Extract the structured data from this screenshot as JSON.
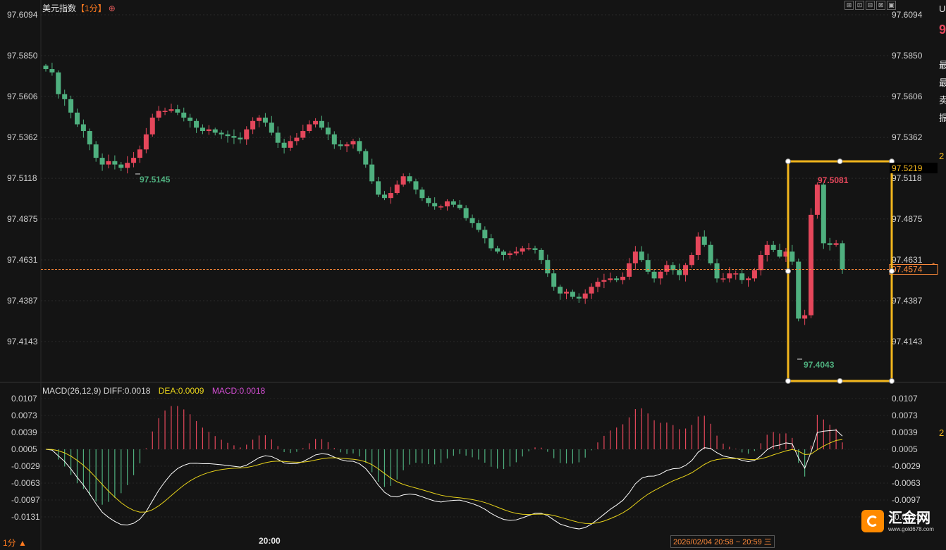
{
  "header": {
    "symbol": "美元指数",
    "timeframe": "【1分】",
    "add_icon": "⊕"
  },
  "toolbar": {
    "buttons": [
      "⊞",
      "⊡",
      "⊟",
      "⊠",
      "▣"
    ]
  },
  "price_axis": {
    "ticks": [
      "97.6094",
      "97.5850",
      "97.5606",
      "97.5362",
      "97.5118",
      "97.4875",
      "97.4631",
      "97.4387",
      "97.4143"
    ],
    "current_price": "97.4574",
    "box_top_price": "97.5219"
  },
  "annotations": {
    "low_left": "97.5145",
    "box_high": "97.5081",
    "box_low": "97.4043"
  },
  "macd": {
    "header": "MACD(26,12,9)",
    "diff": "DIFF:0.0018",
    "dea": "DEA:0.0009",
    "macd": "MACD:0.0018",
    "ticks": [
      "0.0107",
      "0.0073",
      "0.0039",
      "0.0005",
      "-0.0029",
      "-0.0063",
      "-0.0097",
      "-0.0131"
    ]
  },
  "footer": {
    "timeframe": "1分",
    "arrow": "▲",
    "time_label": "20:00",
    "range": "2026/02/04 20:58 ~ 20:59 三"
  },
  "right_panel": {
    "items": [
      "U",
      "9",
      "最",
      "最",
      "卖",
      "振",
      "2",
      "2"
    ]
  },
  "logo": {
    "name": "汇金网",
    "url": "www.gold678.com"
  },
  "colors": {
    "up": "#e5475b",
    "down": "#4fb07f",
    "box": "#f2b61d",
    "price_line": "#ff8a3a",
    "diff": "#ffffff",
    "dea": "#e8d31a"
  },
  "chart_data": {
    "type": "candlestick",
    "title": "美元指数",
    "timeframe": "1分",
    "ylim": [
      97.39,
      97.6094
    ],
    "time_label": "20:00",
    "candles_close": [
      97.577,
      97.575,
      97.562,
      97.559,
      97.551,
      97.544,
      97.54,
      97.532,
      97.524,
      97.52,
      97.522,
      97.52,
      97.518,
      97.521,
      97.524,
      97.529,
      97.538,
      97.548,
      97.552,
      97.552,
      97.553,
      97.551,
      97.548,
      97.546,
      97.542,
      97.54,
      97.541,
      97.539,
      97.538,
      97.537,
      97.536,
      97.535,
      97.541,
      97.546,
      97.548,
      97.545,
      97.539,
      97.533,
      97.53,
      97.534,
      97.536,
      97.54,
      97.544,
      97.546,
      97.542,
      97.538,
      97.532,
      97.531,
      97.532,
      97.534,
      97.528,
      97.52,
      97.51,
      97.502,
      97.5,
      97.503,
      97.508,
      97.513,
      97.51,
      97.505,
      97.5,
      97.497,
      97.495,
      97.495,
      97.498,
      97.496,
      97.494,
      97.488,
      97.485,
      97.481,
      97.476,
      97.47,
      97.468,
      97.466,
      97.467,
      97.468,
      97.47,
      97.47,
      97.469,
      97.463,
      97.455,
      97.447,
      97.443,
      97.444,
      97.441,
      97.44,
      97.443,
      97.447,
      97.45,
      97.451,
      97.452,
      97.451,
      97.453,
      97.461,
      97.468,
      97.463,
      97.456,
      97.452,
      97.456,
      97.46,
      97.457,
      97.454,
      97.46,
      97.466,
      97.477,
      97.472,
      97.461,
      97.452,
      97.452,
      97.455,
      97.455,
      97.451,
      97.452,
      97.457,
      97.466,
      97.472,
      97.469,
      97.465,
      97.468,
      97.462,
      97.428,
      97.43,
      97.49,
      97.508,
      97.473,
      97.472,
      97.473,
      97.4574
    ],
    "low_annotations": [
      "97.5145",
      "97.4043"
    ],
    "high_annotation": "97.5081",
    "last_price": 97.4574,
    "macd": {
      "params": [
        26,
        12,
        9
      ],
      "diff": 0.0018,
      "dea": 0.0009,
      "macd": 0.0018,
      "ylim": [
        -0.0131,
        0.0107
      ]
    }
  }
}
